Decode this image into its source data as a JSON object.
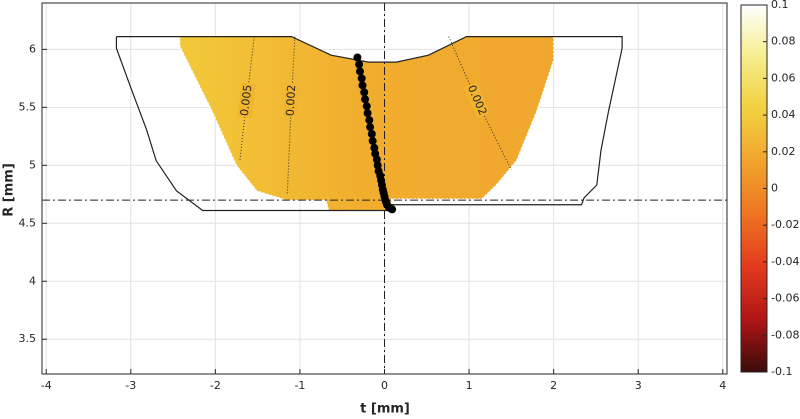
{
  "chart_data": {
    "type": "contour",
    "xlabel": "t [mm]",
    "ylabel": "R [mm]",
    "xlim": [
      -4.05,
      4.05
    ],
    "xticks": [
      -4,
      -3,
      -2,
      -1,
      0,
      1,
      2,
      3,
      4
    ],
    "ylim": [
      3.2,
      6.4
    ],
    "yticks": [
      3.5,
      4,
      4.5,
      5,
      5.5,
      6
    ],
    "grid": true,
    "reference_lines": {
      "x": 0,
      "y": 4.7
    },
    "outline": {
      "color": "#222222",
      "x": [
        -3.17,
        -1.1,
        -0.63,
        -0.19,
        0.14,
        0.52,
        0.97,
        2.81,
        2.81,
        2.65,
        2.56,
        2.51,
        2.36,
        2.33,
        0.08,
        0.08,
        -0.69,
        -2.15,
        -2.46,
        -2.7,
        -2.81,
        -2.99,
        -3.17,
        -3.17
      ],
      "y": [
        6.11,
        6.11,
        5.95,
        5.89,
        5.89,
        5.95,
        6.11,
        6.11,
        6.01,
        5.47,
        5.13,
        4.83,
        4.72,
        4.66,
        4.66,
        4.61,
        4.61,
        4.61,
        4.78,
        5.04,
        5.3,
        5.65,
        6.01,
        6.11
      ]
    },
    "field": {
      "colors": [
        "#f2c93a",
        "#f1ad2e",
        "#f0a72e"
      ],
      "x": [
        -2.42,
        -1.1,
        -0.63,
        -0.19,
        0.14,
        0.52,
        0.97,
        2.0,
        2.0,
        1.8,
        1.56,
        1.32,
        1.15,
        0.08,
        0.08,
        -0.66,
        -0.69,
        -1.16,
        -1.51,
        -1.75,
        -2.04,
        -2.34,
        -2.42
      ],
      "y": [
        6.11,
        6.11,
        5.95,
        5.89,
        5.89,
        5.95,
        6.11,
        6.11,
        5.91,
        5.47,
        5.04,
        4.83,
        4.71,
        4.71,
        4.61,
        4.61,
        4.7,
        4.7,
        4.78,
        5.0,
        5.47,
        5.91,
        6.03
      ]
    },
    "contours": [
      {
        "level": 0.005,
        "x": [
          -1.54,
          -1.63,
          -1.71
        ],
        "y": [
          6.11,
          5.56,
          5.04
        ]
      },
      {
        "level": 0.002,
        "x": [
          -1.06,
          -1.1,
          -1.15
        ],
        "y": [
          6.11,
          5.56,
          4.74
        ]
      },
      {
        "level": 0.002,
        "x": [
          0.76,
          1.09,
          1.5
        ],
        "y": [
          6.11,
          5.56,
          4.96
        ]
      }
    ],
    "points": {
      "color": "#000000",
      "x": [
        -0.32,
        -0.3,
        -0.29,
        -0.27,
        -0.26,
        -0.24,
        -0.23,
        -0.21,
        -0.2,
        -0.18,
        -0.17,
        -0.15,
        -0.14,
        -0.12,
        -0.11,
        -0.09,
        -0.08,
        -0.07,
        -0.05,
        -0.04,
        -0.03,
        -0.02,
        -0.01,
        0.0,
        0.01,
        0.02,
        0.03,
        0.05,
        0.07,
        0.09
      ],
      "y": [
        5.93,
        5.87,
        5.81,
        5.75,
        5.69,
        5.63,
        5.57,
        5.51,
        5.45,
        5.39,
        5.33,
        5.27,
        5.21,
        5.15,
        5.1,
        5.05,
        5.0,
        4.95,
        4.91,
        4.87,
        4.83,
        4.79,
        4.76,
        4.73,
        4.7,
        4.68,
        4.66,
        4.64,
        4.63,
        4.62
      ]
    },
    "colorbar": {
      "clim": [
        -0.1,
        0.1
      ],
      "ticks": [
        -0.1,
        -0.08,
        -0.06,
        -0.04,
        -0.02,
        0,
        0.02,
        0.04,
        0.06,
        0.08,
        0.1
      ],
      "colormap": [
        "#3b0b0b",
        "#b01515",
        "#e23a1e",
        "#ee7422",
        "#f1a32e",
        "#f2d03e",
        "#f6ed8c",
        "#ffffff"
      ]
    }
  }
}
